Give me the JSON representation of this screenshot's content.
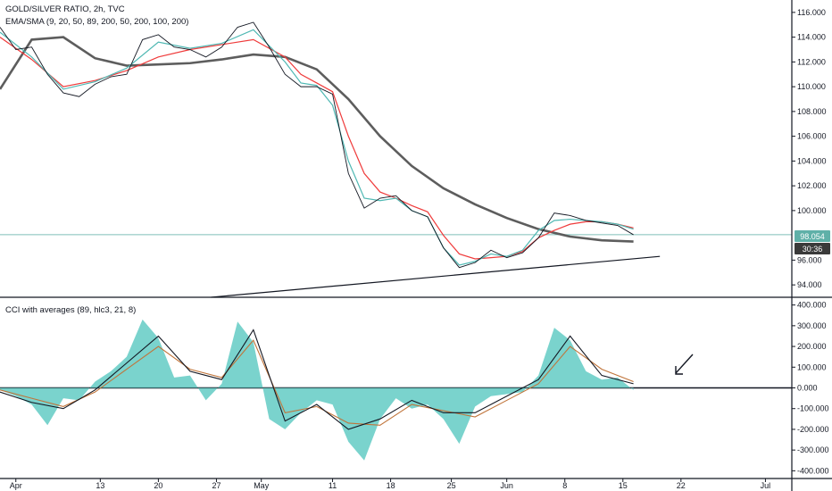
{
  "legend": {
    "main_title": "GOLD/SILVER RATIO, 2h, TVC",
    "main_indicator": "EMA/SMA (9, 20, 50, 89, 200, 50, 200, 100, 200)",
    "sub_indicator": "CCI with averages (89, hlc3, 21, 8)"
  },
  "price_badges": {
    "last_price": "98.054",
    "countdown": "30:36"
  },
  "colors": {
    "price_line": "#131722",
    "ema_red": "#ef3b3b",
    "ema_teal": "#4fb8b3",
    "sma_gray": "#5d5d5d",
    "cci_fill": "#63cbc4",
    "current_price_line": "#7fbfb9",
    "badge_teal": "#5fb0a8",
    "badge_dark": "#3a3a3a"
  },
  "chart_data": [
    {
      "type": "line",
      "title": "GOLD/SILVER RATIO, 2h, TVC",
      "ylim": [
        93.0,
        117.0
      ],
      "y_ticks": [
        "116.000",
        "114.000",
        "112.000",
        "110.000",
        "108.000",
        "106.000",
        "104.000",
        "102.000",
        "100.000",
        "96.000",
        "94.000"
      ],
      "x_ticks": [
        "Apr",
        "13",
        "20",
        "27",
        "May",
        "11",
        "18",
        "25",
        "Jun",
        "8",
        "15",
        "22",
        "Jul"
      ],
      "series": [
        {
          "role": "price",
          "x": [
            0,
            3,
            6,
            9,
            12,
            15,
            18,
            21,
            24,
            27,
            30,
            33,
            36,
            39,
            42,
            45,
            48,
            51,
            54,
            57,
            60,
            63,
            66,
            69,
            72,
            75,
            78,
            81,
            84,
            87,
            90,
            93,
            96,
            99,
            102,
            105,
            108,
            111,
            114,
            117,
            120
          ],
          "values": [
            114.8,
            113.0,
            113.2,
            111.0,
            109.5,
            109.2,
            110.2,
            110.8,
            111.0,
            113.8,
            114.2,
            113.2,
            113.0,
            112.4,
            113.2,
            114.8,
            115.2,
            113.2,
            111.0,
            110.0,
            110.0,
            109.4,
            103.0,
            100.2,
            101.0,
            101.2,
            100.0,
            99.5,
            97.0,
            95.4,
            95.8,
            96.8,
            96.2,
            96.6,
            97.8,
            99.8,
            99.6,
            99.2,
            99.0,
            98.8,
            98.05
          ]
        },
        {
          "role": "ema_red",
          "x": [
            0,
            6,
            12,
            18,
            24,
            30,
            36,
            42,
            48,
            54,
            57,
            60,
            63,
            66,
            69,
            72,
            75,
            78,
            81,
            84,
            87,
            90,
            93,
            96,
            99,
            102,
            105,
            108,
            111,
            114,
            117,
            120
          ],
          "values": [
            114.0,
            112.2,
            110.0,
            110.5,
            111.3,
            112.4,
            113.0,
            113.4,
            113.8,
            112.4,
            111.0,
            110.3,
            109.6,
            106.0,
            103.0,
            101.5,
            101.0,
            100.4,
            99.9,
            98.0,
            96.5,
            96.1,
            96.2,
            96.3,
            96.7,
            97.8,
            98.4,
            98.9,
            99.1,
            99.1,
            98.9,
            98.6
          ]
        },
        {
          "role": "ema_teal",
          "x": [
            0,
            6,
            12,
            18,
            24,
            30,
            36,
            42,
            48,
            54,
            57,
            60,
            63,
            66,
            69,
            72,
            75,
            78,
            81,
            84,
            87,
            90,
            93,
            96,
            99,
            102,
            105,
            108,
            111,
            114,
            117,
            120
          ],
          "values": [
            114.4,
            112.4,
            109.8,
            110.4,
            111.5,
            113.6,
            113.1,
            113.5,
            114.6,
            112.0,
            110.3,
            110.1,
            108.5,
            104.0,
            101.0,
            100.8,
            101.0,
            100.0,
            99.5,
            97.0,
            95.6,
            95.9,
            96.5,
            96.3,
            96.8,
            98.4,
            99.2,
            99.3,
            99.2,
            99.1,
            98.9,
            98.5
          ]
        },
        {
          "role": "sma_gray",
          "x": [
            0,
            6,
            12,
            18,
            24,
            30,
            36,
            42,
            48,
            54,
            60,
            66,
            72,
            78,
            84,
            90,
            96,
            102,
            108,
            114,
            120
          ],
          "values": [
            109.8,
            113.8,
            114.0,
            112.3,
            111.7,
            111.8,
            111.9,
            112.2,
            112.6,
            112.4,
            111.4,
            109.0,
            106.0,
            103.6,
            101.8,
            100.5,
            99.4,
            98.5,
            97.9,
            97.6,
            97.5
          ]
        },
        {
          "role": "trendline",
          "x": [
            40,
            125
          ],
          "values": [
            93.0,
            96.3
          ]
        }
      ]
    },
    {
      "type": "area",
      "title": "CCI with averages (89, hlc3, 21, 8)",
      "ylim": [
        -420,
        420
      ],
      "y_ticks": [
        "400.000",
        "300.000",
        "200.000",
        "100.000",
        "0.000",
        "-100.000",
        "-200.000",
        "-300.000",
        "-400.000"
      ],
      "series": [
        {
          "role": "cci",
          "x": [
            0,
            3,
            6,
            9,
            12,
            15,
            18,
            21,
            24,
            27,
            30,
            33,
            36,
            39,
            42,
            45,
            48,
            51,
            54,
            57,
            60,
            63,
            66,
            69,
            72,
            75,
            78,
            81,
            84,
            87,
            90,
            93,
            96,
            99,
            102,
            105,
            108,
            111,
            114,
            117,
            120
          ],
          "values": [
            -10,
            -40,
            -80,
            -180,
            -50,
            -60,
            30,
            80,
            150,
            330,
            240,
            50,
            60,
            -60,
            20,
            320,
            220,
            -150,
            -200,
            -120,
            -60,
            -80,
            -260,
            -350,
            -150,
            -50,
            -100,
            -80,
            -150,
            -270,
            -90,
            -40,
            -30,
            -20,
            60,
            290,
            230,
            80,
            40,
            50,
            -10
          ]
        },
        {
          "role": "avg_white",
          "x": [
            0,
            6,
            12,
            18,
            24,
            30,
            36,
            42,
            48,
            54,
            60,
            66,
            72,
            78,
            84,
            90,
            96,
            102,
            108,
            114,
            120
          ],
          "values": [
            -20,
            -70,
            -100,
            -10,
            120,
            250,
            80,
            40,
            280,
            -160,
            -80,
            -200,
            -150,
            -60,
            -120,
            -120,
            -40,
            40,
            250,
            60,
            20
          ]
        },
        {
          "role": "avg_orange",
          "x": [
            0,
            6,
            12,
            18,
            24,
            30,
            36,
            42,
            48,
            54,
            60,
            66,
            72,
            78,
            84,
            90,
            96,
            102,
            108,
            114,
            120
          ],
          "values": [
            -10,
            -50,
            -90,
            -20,
            90,
            200,
            90,
            50,
            230,
            -120,
            -90,
            -170,
            -180,
            -80,
            -110,
            -140,
            -60,
            20,
            200,
            90,
            30
          ]
        }
      ]
    }
  ]
}
